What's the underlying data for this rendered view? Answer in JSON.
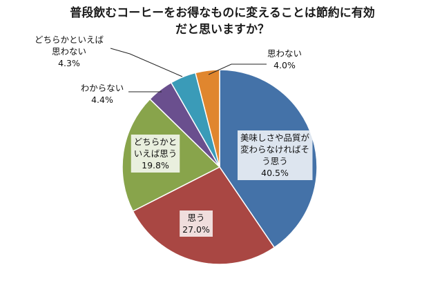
{
  "chart_data": {
    "type": "pie",
    "title": "普段飲むコーヒーをお得なものに変えることは節約に有効だと思いますか？",
    "title_lines": [
      "普段飲むコーヒーをお得なものに変えることは節約に有効",
      "だと思いますか？"
    ],
    "slices": [
      {
        "id": "taste-keeps",
        "label_lines": [
          "美味しさや品質が",
          "変わらなければそ",
          "う思う"
        ],
        "value": 40.5,
        "value_text": "40.5%",
        "color": "#4472A8"
      },
      {
        "id": "yes",
        "label_lines": [
          "思う"
        ],
        "value": 27.0,
        "value_text": "27.0%",
        "color": "#A94743"
      },
      {
        "id": "rather-yes",
        "label_lines": [
          "どちらかと",
          "いえば思う"
        ],
        "value": 19.8,
        "value_text": "19.8%",
        "color": "#88A44B"
      },
      {
        "id": "dont-know",
        "label_lines": [
          "わからない"
        ],
        "value": 4.4,
        "value_text": "4.4%",
        "color": "#6A4F8E"
      },
      {
        "id": "rather-no",
        "label_lines": [
          "どちらかといえば",
          "思わない"
        ],
        "value": 4.3,
        "value_text": "4.3%",
        "color": "#3A9BB8"
      },
      {
        "id": "no",
        "label_lines": [
          "思わない"
        ],
        "value": 4.0,
        "value_text": "4.0%",
        "color": "#E0862E"
      }
    ],
    "start": "12 o'clock",
    "direction": "clockwise",
    "legend": "none"
  }
}
